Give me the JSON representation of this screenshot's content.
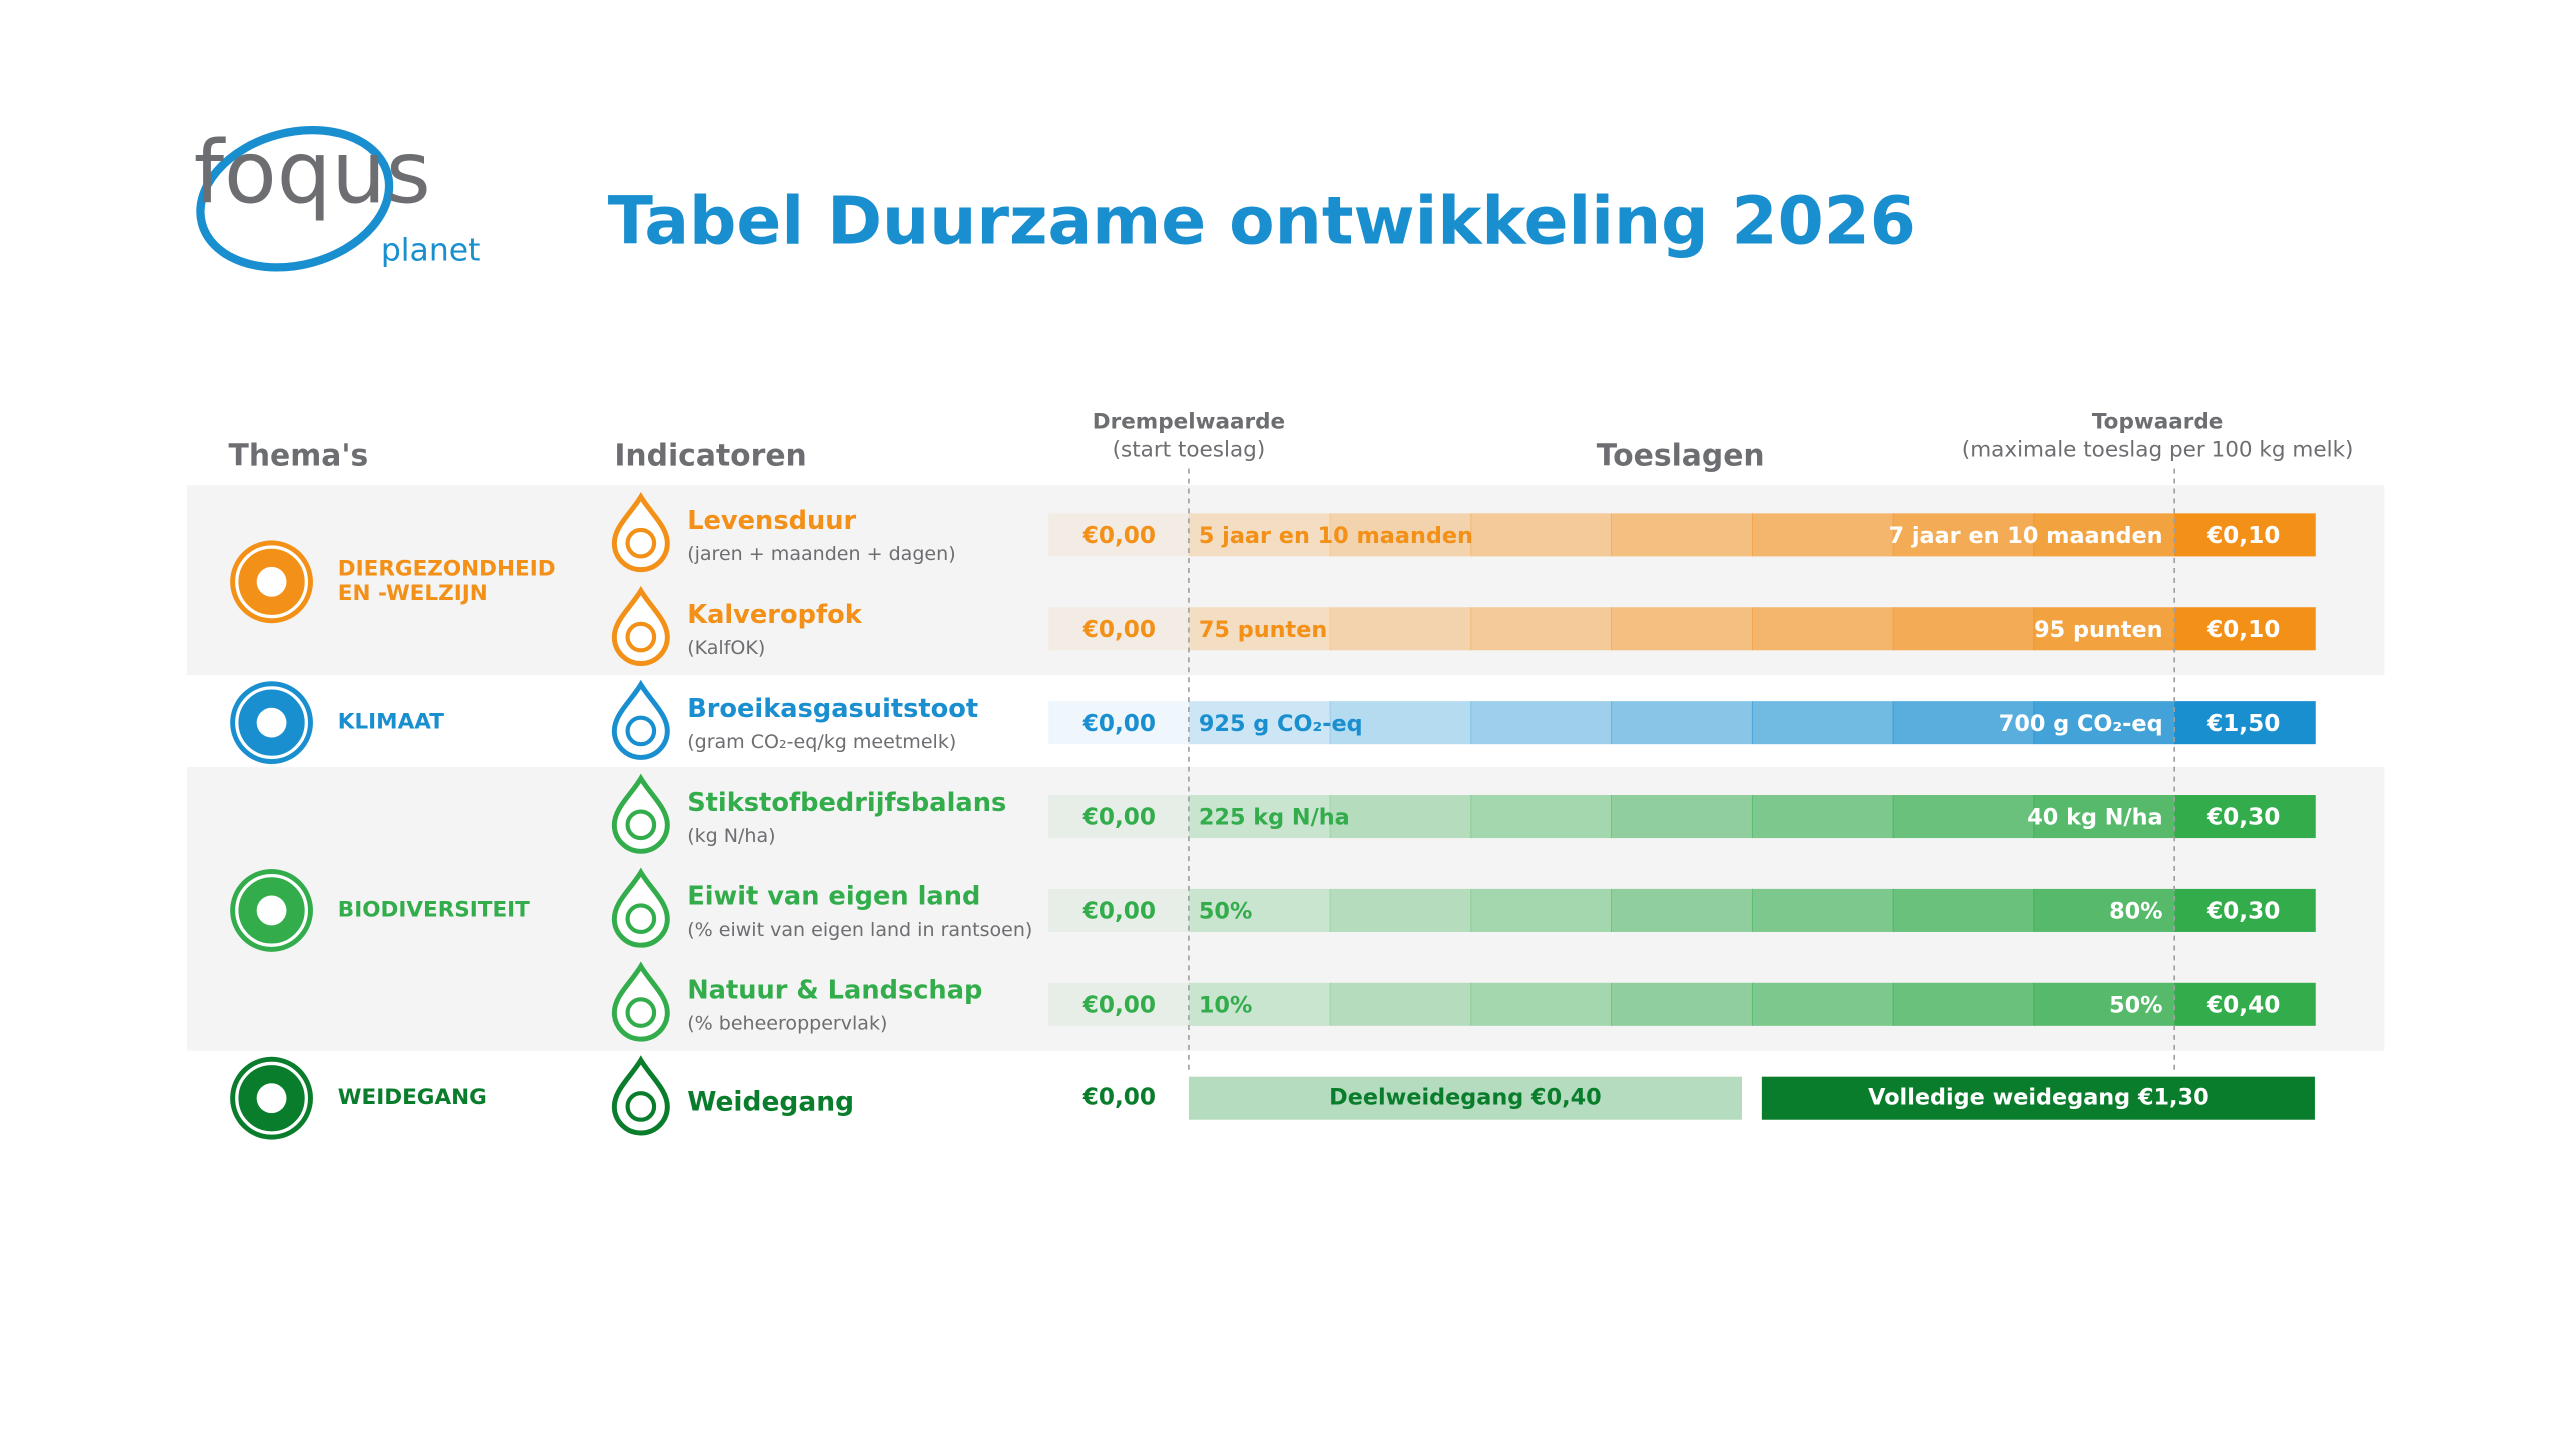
{
  "logo": {
    "brand": "foqus",
    "sub": "planet"
  },
  "title": "Tabel Duurzame ontwikkeling 2026",
  "headers": {
    "themes": "Thema's",
    "indicators": "Indicatoren",
    "threshold": "Drempelwaarde",
    "threshold_note": "(start toeslag)",
    "allowances": "Toeslagen",
    "top": "Topwaarde",
    "top_note": "(maximale toeslag per 100 kg melk)"
  },
  "themes": [
    {
      "lines": [
        "DIERGEZONDHEID",
        "EN -WELZIJN"
      ],
      "color": "#f39018",
      "indicators": [
        {
          "name": "Levensduur",
          "note": "(jaren + maanden + dagen)",
          "start": "€0,00",
          "threshold": "5 jaar en 10 maanden",
          "top_label": "7 jaar en 10 maanden",
          "top_value": "€0,10"
        },
        {
          "name": "Kalveropfok",
          "note": "(KalfOK)",
          "start": "€0,00",
          "threshold": "75 punten",
          "top_label": "95 punten",
          "top_value": "€0,10"
        }
      ]
    },
    {
      "lines": [
        "KLIMAAT"
      ],
      "color": "#1a8fd0",
      "indicators": [
        {
          "name": "Broeikasgasuitstoot",
          "note": "(gram CO₂-eq/kg meetmelk)",
          "start": "€0,00",
          "threshold": "925 g CO₂-eq",
          "top_label": "700 g CO₂-eq",
          "top_value": "€1,50"
        }
      ]
    },
    {
      "lines": [
        "BIODIVERSITEIT"
      ],
      "color": "#33ad4c",
      "indicators": [
        {
          "name": "Stikstofbedrijfsbalans",
          "note": "(kg N/ha)",
          "start": "€0,00",
          "threshold": "225 kg N/ha",
          "top_label": "40 kg N/ha",
          "top_value": "€0,30"
        },
        {
          "name": "Eiwit van eigen land",
          "note": "(% eiwit van eigen land in rantsoen)",
          "start": "€0,00",
          "threshold": "50%",
          "top_label": "80%",
          "top_value": "€0,30"
        },
        {
          "name": "Natuur & Landschap",
          "note": "(% beheeroppervlak)",
          "start": "€0,00",
          "threshold": "10%",
          "top_label": "50%",
          "top_value": "€0,40"
        }
      ]
    }
  ],
  "grazing": {
    "lines": [
      "WEIDEGANG"
    ],
    "color": "#0a7d2c",
    "name": "Weidegang",
    "start": "€0,00",
    "partial": "Deelweidegang €0,40",
    "full": "Volledige weidegang €1,30"
  }
}
